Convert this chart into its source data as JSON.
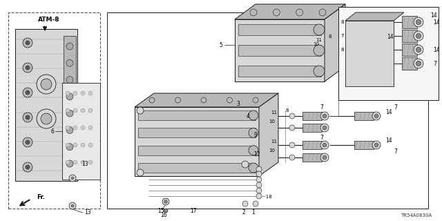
{
  "background_color": "#ffffff",
  "fig_width": 6.4,
  "fig_height": 3.2,
  "dpi": 100,
  "atm_text": "ATM-8",
  "fr_text": "Fr.",
  "part_code": "TR54A0830A",
  "line_color": "#1a1a1a",
  "gray_light": "#d8d8d8",
  "gray_mid": "#b8b8b8",
  "gray_dark": "#888888"
}
